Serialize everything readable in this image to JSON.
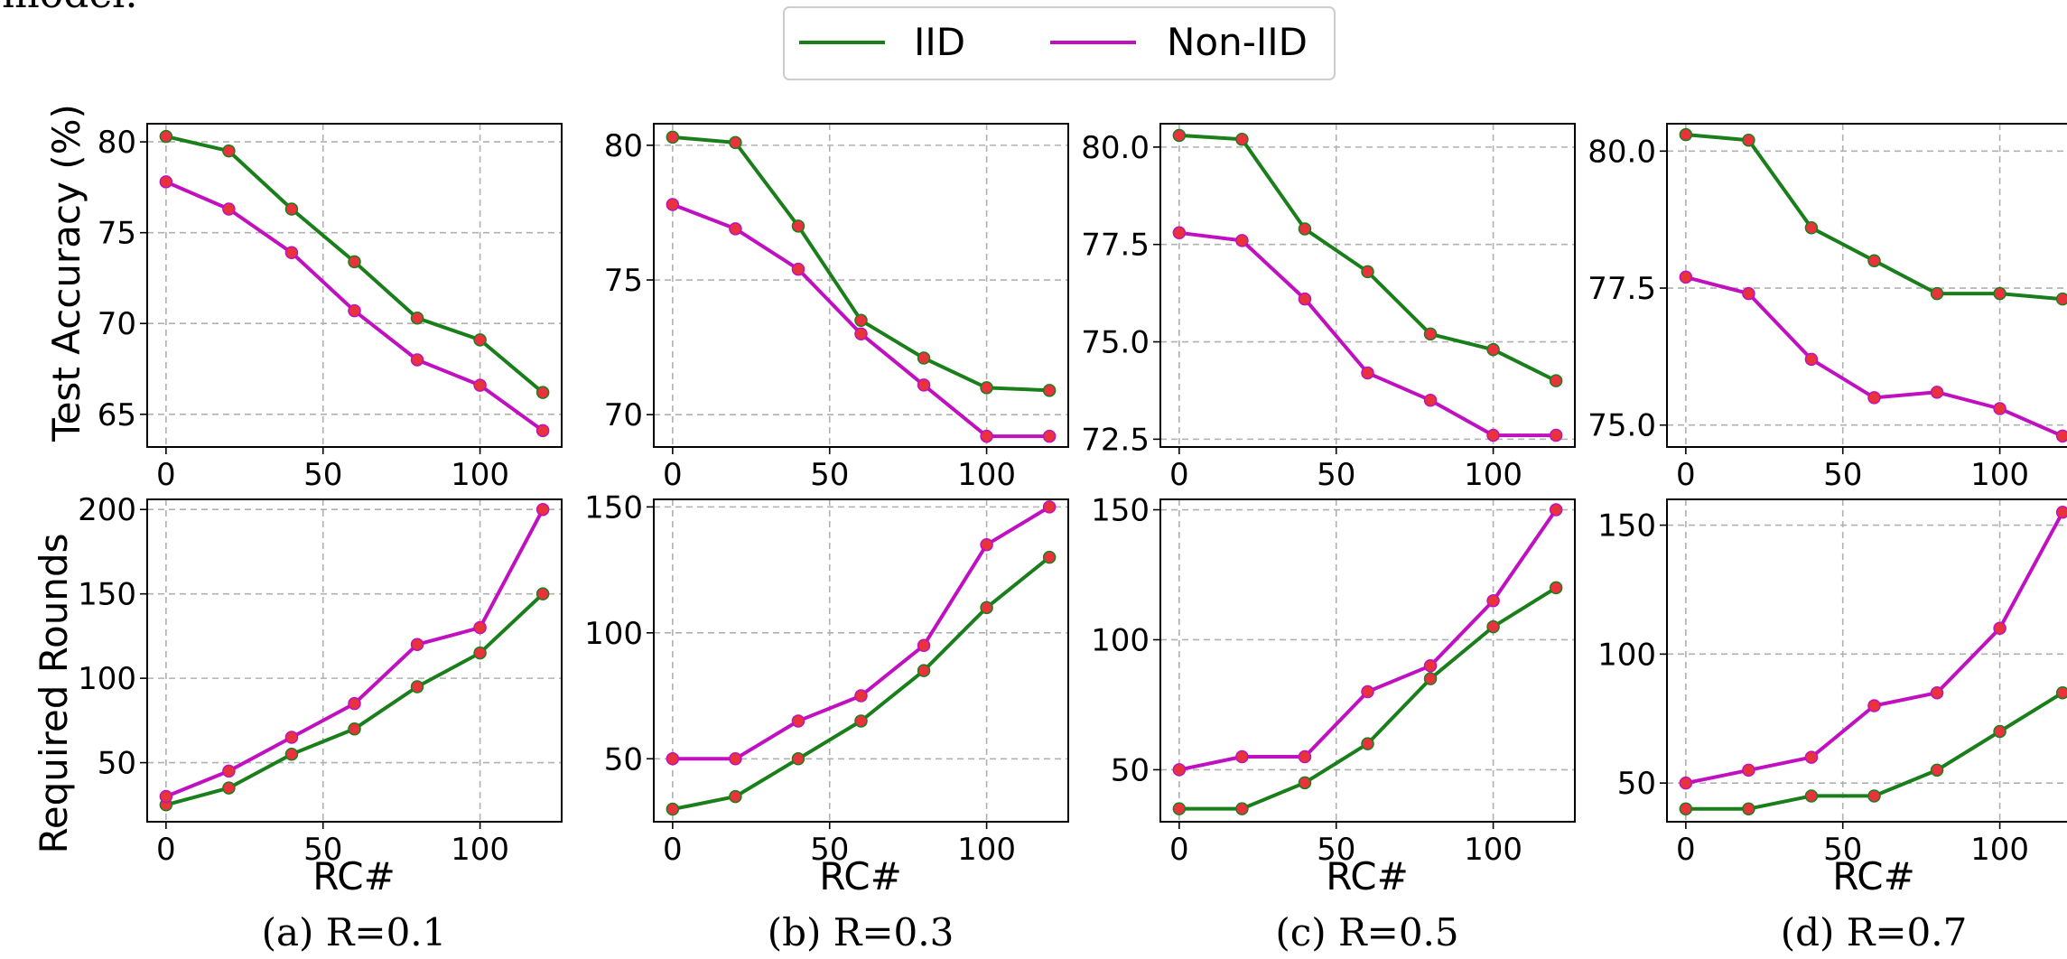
{
  "top_text": "model.",
  "legend": [
    {
      "label": "IID",
      "color": "#1a7f1a"
    },
    {
      "label": "Non-IID",
      "color": "#c010c0"
    }
  ],
  "marker_color": "#e8323c",
  "y_labels": {
    "top": "Test Accuracy (%)",
    "bottom": "Required Rounds"
  },
  "x_label": "RC#",
  "captions": [
    "(a) R=0.1",
    "(b) R=0.3",
    "(c) R=0.5",
    "(d) R=0.7"
  ],
  "chart_data": [
    {
      "type": "line",
      "x": [
        0,
        20,
        40,
        60,
        80,
        100,
        120
      ],
      "xlim": [
        -6,
        126
      ],
      "ylim": [
        63.2,
        81.0
      ],
      "yticks": [
        65,
        70,
        75,
        80
      ],
      "ytick_labels": [
        "65",
        "70",
        "75",
        "80"
      ],
      "xticks": [
        0,
        50,
        100
      ],
      "xtick_labels": [
        "0",
        "50",
        "100"
      ],
      "series": [
        {
          "name": "IID",
          "values": [
            80.3,
            79.5,
            76.3,
            73.4,
            70.3,
            69.1,
            66.2
          ]
        },
        {
          "name": "Non-IID",
          "values": [
            77.8,
            76.3,
            73.9,
            70.7,
            68.0,
            66.6,
            64.1
          ]
        }
      ]
    },
    {
      "type": "line",
      "x": [
        0,
        20,
        40,
        60,
        80,
        100,
        120
      ],
      "xlim": [
        -6,
        126
      ],
      "ylim": [
        68.8,
        80.8
      ],
      "yticks": [
        70,
        75,
        80
      ],
      "ytick_labels": [
        "70",
        "75",
        "80"
      ],
      "xticks": [
        0,
        50,
        100
      ],
      "xtick_labels": [
        "0",
        "50",
        "100"
      ],
      "series": [
        {
          "name": "IID",
          "values": [
            80.3,
            80.1,
            77.0,
            73.5,
            72.1,
            71.0,
            70.9
          ]
        },
        {
          "name": "Non-IID",
          "values": [
            77.8,
            76.9,
            75.4,
            73.0,
            71.1,
            69.2,
            69.2
          ]
        }
      ]
    },
    {
      "type": "line",
      "x": [
        0,
        20,
        40,
        60,
        80,
        100,
        120
      ],
      "xlim": [
        -6,
        126
      ],
      "ylim": [
        72.3,
        80.6
      ],
      "yticks": [
        72.5,
        75.0,
        77.5,
        80.0
      ],
      "ytick_labels": [
        "72.5",
        "75.0",
        "77.5",
        "80.0"
      ],
      "xticks": [
        0,
        50,
        100
      ],
      "xtick_labels": [
        "0",
        "50",
        "100"
      ],
      "series": [
        {
          "name": "IID",
          "values": [
            80.3,
            80.2,
            77.9,
            76.8,
            75.2,
            74.8,
            74.0
          ]
        },
        {
          "name": "Non-IID",
          "values": [
            77.8,
            77.6,
            76.1,
            74.2,
            73.5,
            72.6,
            72.6
          ]
        }
      ]
    },
    {
      "type": "line",
      "x": [
        0,
        20,
        40,
        60,
        80,
        100,
        120
      ],
      "xlim": [
        -6,
        126
      ],
      "ylim": [
        74.6,
        80.5
      ],
      "yticks": [
        75.0,
        77.5,
        80.0
      ],
      "ytick_labels": [
        "75.0",
        "77.5",
        "80.0"
      ],
      "xticks": [
        0,
        50,
        100
      ],
      "xtick_labels": [
        "0",
        "50",
        "100"
      ],
      "series": [
        {
          "name": "IID",
          "values": [
            80.3,
            80.2,
            78.6,
            78.0,
            77.4,
            77.4,
            77.3
          ]
        },
        {
          "name": "Non-IID",
          "values": [
            77.7,
            77.4,
            76.2,
            75.5,
            75.6,
            75.3,
            74.8
          ]
        }
      ]
    },
    {
      "type": "line",
      "x": [
        0,
        20,
        40,
        60,
        80,
        100,
        120
      ],
      "xlim": [
        -6,
        126
      ],
      "ylim": [
        15,
        206
      ],
      "yticks": [
        50,
        100,
        150,
        200
      ],
      "ytick_labels": [
        "50",
        "100",
        "150",
        "200"
      ],
      "xticks": [
        0,
        50,
        100
      ],
      "xtick_labels": [
        "0",
        "50",
        "100"
      ],
      "series": [
        {
          "name": "IID",
          "values": [
            25,
            35,
            55,
            70,
            95,
            115,
            150
          ]
        },
        {
          "name": "Non-IID",
          "values": [
            30,
            45,
            65,
            85,
            120,
            130,
            200
          ]
        }
      ]
    },
    {
      "type": "line",
      "x": [
        0,
        20,
        40,
        60,
        80,
        100,
        120
      ],
      "xlim": [
        -6,
        126
      ],
      "ylim": [
        25,
        153
      ],
      "yticks": [
        50,
        100,
        150
      ],
      "ytick_labels": [
        "50",
        "100",
        "150"
      ],
      "xticks": [
        0,
        50,
        100
      ],
      "xtick_labels": [
        "0",
        "50",
        "100"
      ],
      "series": [
        {
          "name": "IID",
          "values": [
            30,
            35,
            50,
            65,
            85,
            110,
            130
          ]
        },
        {
          "name": "Non-IID",
          "values": [
            50,
            50,
            65,
            75,
            95,
            135,
            150
          ]
        }
      ]
    },
    {
      "type": "line",
      "x": [
        0,
        20,
        40,
        60,
        80,
        100,
        120
      ],
      "xlim": [
        -6,
        126
      ],
      "ylim": [
        30,
        154
      ],
      "yticks": [
        50,
        100,
        150
      ],
      "ytick_labels": [
        "50",
        "100",
        "150"
      ],
      "xticks": [
        0,
        50,
        100
      ],
      "xtick_labels": [
        "0",
        "50",
        "100"
      ],
      "series": [
        {
          "name": "IID",
          "values": [
            35,
            35,
            45,
            60,
            85,
            105,
            120
          ]
        },
        {
          "name": "Non-IID",
          "values": [
            50,
            55,
            55,
            80,
            90,
            115,
            150
          ]
        }
      ]
    },
    {
      "type": "line",
      "x": [
        0,
        20,
        40,
        60,
        80,
        100,
        120
      ],
      "xlim": [
        -6,
        126
      ],
      "ylim": [
        35,
        160
      ],
      "yticks": [
        50,
        100,
        150
      ],
      "ytick_labels": [
        "50",
        "100",
        "150"
      ],
      "xticks": [
        0,
        50,
        100
      ],
      "xtick_labels": [
        "0",
        "50",
        "100"
      ],
      "series": [
        {
          "name": "IID",
          "values": [
            40,
            40,
            45,
            45,
            55,
            70,
            85
          ]
        },
        {
          "name": "Non-IID",
          "values": [
            50,
            55,
            60,
            80,
            85,
            110,
            155
          ]
        }
      ]
    }
  ]
}
